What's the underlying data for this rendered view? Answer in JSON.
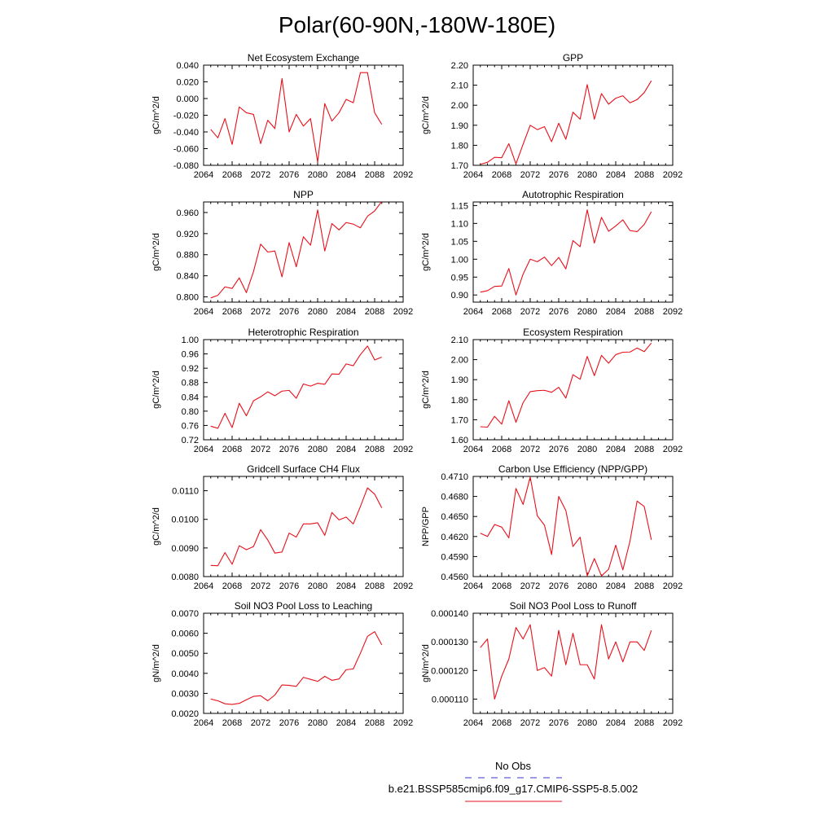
{
  "figure": {
    "title": "Polar(60-90N,-180W-180E)"
  },
  "legend": {
    "items": [
      {
        "label": "No Obs",
        "color": "#3333cc",
        "dash": true
      },
      {
        "label": "b.e21.BSSP585cmip6.f09_g17.CMIP6-SSP5-8.5.002",
        "color": "#e8101a",
        "dash": false
      }
    ]
  },
  "colors": {
    "series": "#e8101a",
    "axis": "#000000"
  },
  "chart_data": [
    {
      "type": "line",
      "title": "Net Ecosystem Exchange",
      "ylabel": "gC/m^2/d",
      "xlim": [
        2064,
        2092
      ],
      "xticks": [
        2064,
        2068,
        2072,
        2076,
        2080,
        2084,
        2088,
        2092
      ],
      "ylim": [
        -0.08,
        0.04
      ],
      "yticks": [
        "0.040",
        "0.020",
        "0.000",
        "-0.020",
        "-0.040",
        "-0.060",
        "-0.080"
      ],
      "x": [
        2065,
        2066,
        2067,
        2068,
        2069,
        2070,
        2071,
        2072,
        2073,
        2074,
        2075,
        2076,
        2077,
        2078,
        2079,
        2080,
        2081,
        2082,
        2083,
        2084,
        2085,
        2086,
        2087,
        2088,
        2089
      ],
      "values": [
        -0.037,
        -0.047,
        -0.024,
        -0.055,
        -0.01,
        -0.017,
        -0.019,
        -0.054,
        -0.026,
        -0.036,
        0.024,
        -0.04,
        -0.019,
        -0.033,
        -0.024,
        -0.076,
        -0.006,
        -0.027,
        -0.017,
        -0.001,
        -0.005,
        0.031,
        0.031,
        -0.017,
        -0.031
      ]
    },
    {
      "type": "line",
      "title": "GPP",
      "ylabel": "gC/m^2/d",
      "xlim": [
        2064,
        2092
      ],
      "xticks": [
        2064,
        2068,
        2072,
        2076,
        2080,
        2084,
        2088,
        2092
      ],
      "ylim": [
        1.7,
        2.2
      ],
      "yticks": [
        "2.20",
        "2.10",
        "2.00",
        "1.90",
        "1.80",
        "1.70"
      ],
      "x": [
        2065,
        2066,
        2067,
        2068,
        2069,
        2070,
        2071,
        2072,
        2073,
        2074,
        2075,
        2076,
        2077,
        2078,
        2079,
        2080,
        2081,
        2082,
        2083,
        2084,
        2085,
        2086,
        2087,
        2088,
        2089
      ],
      "values": [
        1.705,
        1.715,
        1.74,
        1.738,
        1.808,
        1.707,
        1.805,
        1.9,
        1.878,
        1.893,
        1.818,
        1.91,
        1.83,
        1.965,
        1.93,
        2.103,
        1.93,
        2.058,
        2.005,
        2.035,
        2.047,
        2.012,
        2.028,
        2.063,
        2.122
      ]
    },
    {
      "type": "line",
      "title": "NPP",
      "ylabel": "gC/m^2/d",
      "xlim": [
        2064,
        2092
      ],
      "xticks": [
        2064,
        2068,
        2072,
        2076,
        2080,
        2084,
        2088,
        2092
      ],
      "ylim": [
        0.79,
        0.98
      ],
      "yticks": [
        "0.960",
        "0.920",
        "0.880",
        "0.840",
        "0.800"
      ],
      "ytickValues": [
        0.96,
        0.92,
        0.88,
        0.84,
        0.8
      ],
      "x": [
        2065,
        2066,
        2067,
        2068,
        2069,
        2070,
        2071,
        2072,
        2073,
        2074,
        2075,
        2076,
        2077,
        2078,
        2079,
        2080,
        2081,
        2082,
        2083,
        2084,
        2085,
        2086,
        2087,
        2088,
        2089
      ],
      "values": [
        0.798,
        0.803,
        0.819,
        0.816,
        0.836,
        0.808,
        0.848,
        0.9,
        0.885,
        0.887,
        0.838,
        0.903,
        0.857,
        0.914,
        0.898,
        0.965,
        0.887,
        0.939,
        0.927,
        0.941,
        0.938,
        0.931,
        0.953,
        0.963,
        0.981
      ]
    },
    {
      "type": "line",
      "title": "Autotrophic Respiration",
      "ylabel": "gC/m^2/d",
      "xlim": [
        2064,
        2092
      ],
      "xticks": [
        2064,
        2068,
        2072,
        2076,
        2080,
        2084,
        2088,
        2092
      ],
      "ylim": [
        0.88,
        1.16
      ],
      "yticks": [
        "1.15",
        "1.10",
        "1.05",
        "1.00",
        "0.95",
        "0.90"
      ],
      "ytickValues": [
        1.15,
        1.1,
        1.05,
        1.0,
        0.95,
        0.9
      ],
      "x": [
        2065,
        2066,
        2067,
        2068,
        2069,
        2070,
        2071,
        2072,
        2073,
        2074,
        2075,
        2076,
        2077,
        2078,
        2079,
        2080,
        2081,
        2082,
        2083,
        2084,
        2085,
        2086,
        2087,
        2088,
        2089
      ],
      "values": [
        0.908,
        0.912,
        0.924,
        0.925,
        0.974,
        0.9,
        0.958,
        1.0,
        0.993,
        1.006,
        0.982,
        1.005,
        0.973,
        1.052,
        1.035,
        1.138,
        1.045,
        1.117,
        1.078,
        1.093,
        1.11,
        1.08,
        1.077,
        1.097,
        1.133
      ]
    },
    {
      "type": "line",
      "title": "Heterotrophic Respiration",
      "ylabel": "gC/m^2/d",
      "xlim": [
        2064,
        2092
      ],
      "xticks": [
        2064,
        2068,
        2072,
        2076,
        2080,
        2084,
        2088,
        2092
      ],
      "ylim": [
        0.72,
        1.0
      ],
      "yticks": [
        "1.00",
        "0.96",
        "0.92",
        "0.88",
        "0.84",
        "0.80",
        "0.76",
        "0.72"
      ],
      "x": [
        2065,
        2066,
        2067,
        2068,
        2069,
        2070,
        2071,
        2072,
        2073,
        2074,
        2075,
        2076,
        2077,
        2078,
        2079,
        2080,
        2081,
        2082,
        2083,
        2084,
        2085,
        2086,
        2087,
        2088,
        2089
      ],
      "values": [
        0.758,
        0.752,
        0.794,
        0.754,
        0.822,
        0.787,
        0.829,
        0.84,
        0.854,
        0.843,
        0.856,
        0.858,
        0.836,
        0.876,
        0.87,
        0.878,
        0.875,
        0.904,
        0.903,
        0.932,
        0.927,
        0.958,
        0.982,
        0.943,
        0.951
      ]
    },
    {
      "type": "line",
      "title": "Ecosystem Respiration",
      "ylabel": "gC/m^2/d",
      "xlim": [
        2064,
        2092
      ],
      "xticks": [
        2064,
        2068,
        2072,
        2076,
        2080,
        2084,
        2088,
        2092
      ],
      "ylim": [
        1.6,
        2.1
      ],
      "yticks": [
        "2.10",
        "2.00",
        "1.90",
        "1.80",
        "1.70",
        "1.60"
      ],
      "x": [
        2065,
        2066,
        2067,
        2068,
        2069,
        2070,
        2071,
        2072,
        2073,
        2074,
        2075,
        2076,
        2077,
        2078,
        2079,
        2080,
        2081,
        2082,
        2083,
        2084,
        2085,
        2086,
        2087,
        2088,
        2089
      ],
      "values": [
        1.665,
        1.663,
        1.717,
        1.678,
        1.795,
        1.687,
        1.785,
        1.84,
        1.845,
        1.847,
        1.837,
        1.862,
        1.808,
        1.925,
        1.902,
        2.016,
        1.92,
        2.021,
        1.982,
        2.025,
        2.037,
        2.038,
        2.058,
        2.04,
        2.083
      ]
    },
    {
      "type": "line",
      "title": "Gridcell Surface CH4 Flux",
      "ylabel": "gC/m^2/d",
      "xlim": [
        2064,
        2092
      ],
      "xticks": [
        2064,
        2068,
        2072,
        2076,
        2080,
        2084,
        2088,
        2092
      ],
      "ylim": [
        0.008,
        0.0115
      ],
      "yticks": [
        "0.0110",
        "0.0100",
        "0.0090",
        "0.0080"
      ],
      "ytickValues": [
        0.011,
        0.01,
        0.009,
        0.008
      ],
      "x": [
        2065,
        2066,
        2067,
        2068,
        2069,
        2070,
        2071,
        2072,
        2073,
        2074,
        2075,
        2076,
        2077,
        2078,
        2079,
        2080,
        2081,
        2082,
        2083,
        2084,
        2085,
        2086,
        2087,
        2088,
        2089
      ],
      "values": [
        0.00839,
        0.00838,
        0.00884,
        0.00843,
        0.00908,
        0.00894,
        0.00905,
        0.00964,
        0.00928,
        0.00882,
        0.00886,
        0.00952,
        0.00938,
        0.00984,
        0.00984,
        0.00988,
        0.00944,
        0.01024,
        0.00998,
        0.01008,
        0.00984,
        0.01045,
        0.0111,
        0.01088,
        0.0104
      ]
    },
    {
      "type": "line",
      "title": "Carbon Use Efficiency (NPP/GPP)",
      "ylabel": "NPP/GPP",
      "xlim": [
        2064,
        2092
      ],
      "xticks": [
        2064,
        2068,
        2072,
        2076,
        2080,
        2084,
        2088,
        2092
      ],
      "ylim": [
        0.456,
        0.471
      ],
      "yticks": [
        "0.4710",
        "0.4680",
        "0.4650",
        "0.4620",
        "0.4590",
        "0.4560"
      ],
      "x": [
        2065,
        2066,
        2067,
        2068,
        2069,
        2070,
        2071,
        2072,
        2073,
        2074,
        2075,
        2076,
        2077,
        2078,
        2079,
        2080,
        2081,
        2082,
        2083,
        2084,
        2085,
        2086,
        2087,
        2088,
        2089
      ],
      "values": [
        0.4625,
        0.462,
        0.4638,
        0.4634,
        0.4618,
        0.4692,
        0.4668,
        0.4709,
        0.4651,
        0.4637,
        0.4593,
        0.468,
        0.4659,
        0.4605,
        0.4619,
        0.4561,
        0.4587,
        0.4561,
        0.4571,
        0.4607,
        0.457,
        0.4613,
        0.4673,
        0.4665,
        0.4615
      ]
    },
    {
      "type": "line",
      "title": "Soil NO3 Pool Loss to Leaching",
      "ylabel": "gN/m^2/d",
      "xlim": [
        2064,
        2092
      ],
      "xticks": [
        2064,
        2068,
        2072,
        2076,
        2080,
        2084,
        2088,
        2092
      ],
      "ylim": [
        0.002,
        0.007
      ],
      "yticks": [
        "0.0070",
        "0.0060",
        "0.0050",
        "0.0040",
        "0.0030",
        "0.0020"
      ],
      "x": [
        2065,
        2066,
        2067,
        2068,
        2069,
        2070,
        2071,
        2072,
        2073,
        2074,
        2075,
        2076,
        2077,
        2078,
        2079,
        2080,
        2081,
        2082,
        2083,
        2084,
        2085,
        2086,
        2087,
        2088,
        2089
      ],
      "values": [
        0.00272,
        0.00263,
        0.00248,
        0.00245,
        0.0025,
        0.00268,
        0.00285,
        0.00288,
        0.00263,
        0.00292,
        0.00342,
        0.0034,
        0.00335,
        0.0038,
        0.0037,
        0.0036,
        0.00385,
        0.00365,
        0.00372,
        0.00418,
        0.00422,
        0.005,
        0.00585,
        0.00608,
        0.00542
      ]
    },
    {
      "type": "line",
      "title": "Soil NO3 Pool Loss to Runoff",
      "ylabel": "gN/m^2/d",
      "xlim": [
        2064,
        2092
      ],
      "xticks": [
        2064,
        2068,
        2072,
        2076,
        2080,
        2084,
        2088,
        2092
      ],
      "ylim": [
        0.000105,
        0.00014
      ],
      "yticks": [
        "0.000140",
        "0.000130",
        "0.000120",
        "0.000110"
      ],
      "ytickValues": [
        0.00014,
        0.00013,
        0.00012,
        0.00011
      ],
      "x": [
        2065,
        2066,
        2067,
        2068,
        2069,
        2070,
        2071,
        2072,
        2073,
        2074,
        2075,
        2076,
        2077,
        2078,
        2079,
        2080,
        2081,
        2082,
        2083,
        2084,
        2085,
        2086,
        2087,
        2088,
        2089
      ],
      "values": [
        0.000128,
        0.000131,
        0.00011,
        0.000118,
        0.000124,
        0.000135,
        0.000131,
        0.000136,
        0.00012,
        0.000121,
        0.000118,
        0.000134,
        0.000122,
        0.000133,
        0.000122,
        0.000122,
        0.000117,
        0.000136,
        0.000124,
        0.00013,
        0.000123,
        0.00013,
        0.00013,
        0.000127,
        0.000134
      ]
    }
  ]
}
